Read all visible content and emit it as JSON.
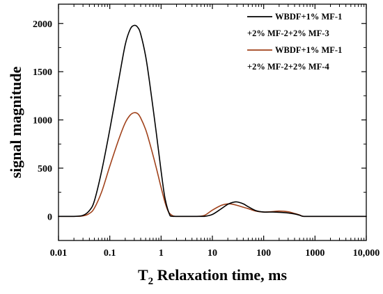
{
  "chart_data": {
    "type": "line",
    "title": "",
    "xlabel": {
      "main": "T",
      "subscript": "2",
      "rest": " Relaxation time, ms"
    },
    "ylabel": "signal magnitude",
    "x_scale": "log",
    "xlim": [
      0.01,
      10000
    ],
    "ylim": [
      -250,
      2200
    ],
    "x_ticks": [
      0.01,
      0.1,
      1,
      10,
      100,
      1000,
      10000
    ],
    "x_tick_labels": [
      "0.01",
      "0.1",
      "1",
      "10",
      "100",
      "1000",
      "10,000"
    ],
    "y_ticks": [
      0,
      500,
      1000,
      1500,
      2000
    ],
    "y_tick_labels": [
      "0",
      "500",
      "1000",
      "1500",
      "2000"
    ],
    "grid": false,
    "legend_position": "top-right",
    "series": [
      {
        "name_lines": [
          "WBDF+1% MF-1",
          "+2% MF-2+2% MF-3"
        ],
        "color": "#000000",
        "x": [
          0.01,
          0.02,
          0.03,
          0.04,
          0.05,
          0.07,
          0.1,
          0.15,
          0.2,
          0.25,
          0.3,
          0.35,
          0.4,
          0.5,
          0.6,
          0.8,
          1.0,
          1.2,
          1.5,
          1.7,
          2,
          3,
          5,
          7,
          10,
          15,
          20,
          25,
          30,
          40,
          50,
          70,
          100,
          150,
          200,
          300,
          400,
          500,
          600,
          1000,
          3000,
          10000
        ],
        "y": [
          0,
          0,
          10,
          60,
          160,
          480,
          900,
          1420,
          1780,
          1940,
          1980,
          1960,
          1890,
          1660,
          1380,
          880,
          470,
          180,
          5,
          0,
          0,
          0,
          0,
          0,
          20,
          80,
          125,
          145,
          150,
          130,
          100,
          60,
          45,
          45,
          42,
          35,
          25,
          12,
          0,
          0,
          0,
          0
        ]
      },
      {
        "name_lines": [
          "WBDF+1% MF-1",
          "+2% MF-2+2% MF-4"
        ],
        "color": "#a0411a",
        "x": [
          0.01,
          0.02,
          0.03,
          0.04,
          0.05,
          0.07,
          0.1,
          0.15,
          0.2,
          0.25,
          0.3,
          0.35,
          0.4,
          0.5,
          0.6,
          0.8,
          1.0,
          1.2,
          1.4,
          1.7,
          2,
          3,
          5,
          7,
          10,
          15,
          20,
          25,
          30,
          40,
          50,
          70,
          100,
          150,
          200,
          300,
          400,
          500,
          600,
          1000,
          3000,
          10000
        ],
        "y": [
          0,
          0,
          5,
          30,
          85,
          260,
          520,
          800,
          970,
          1050,
          1075,
          1065,
          1020,
          900,
          760,
          510,
          300,
          140,
          45,
          5,
          0,
          0,
          0,
          10,
          65,
          115,
          130,
          125,
          115,
          95,
          80,
          55,
          45,
          50,
          55,
          48,
          30,
          15,
          0,
          0,
          0,
          0
        ]
      }
    ]
  }
}
